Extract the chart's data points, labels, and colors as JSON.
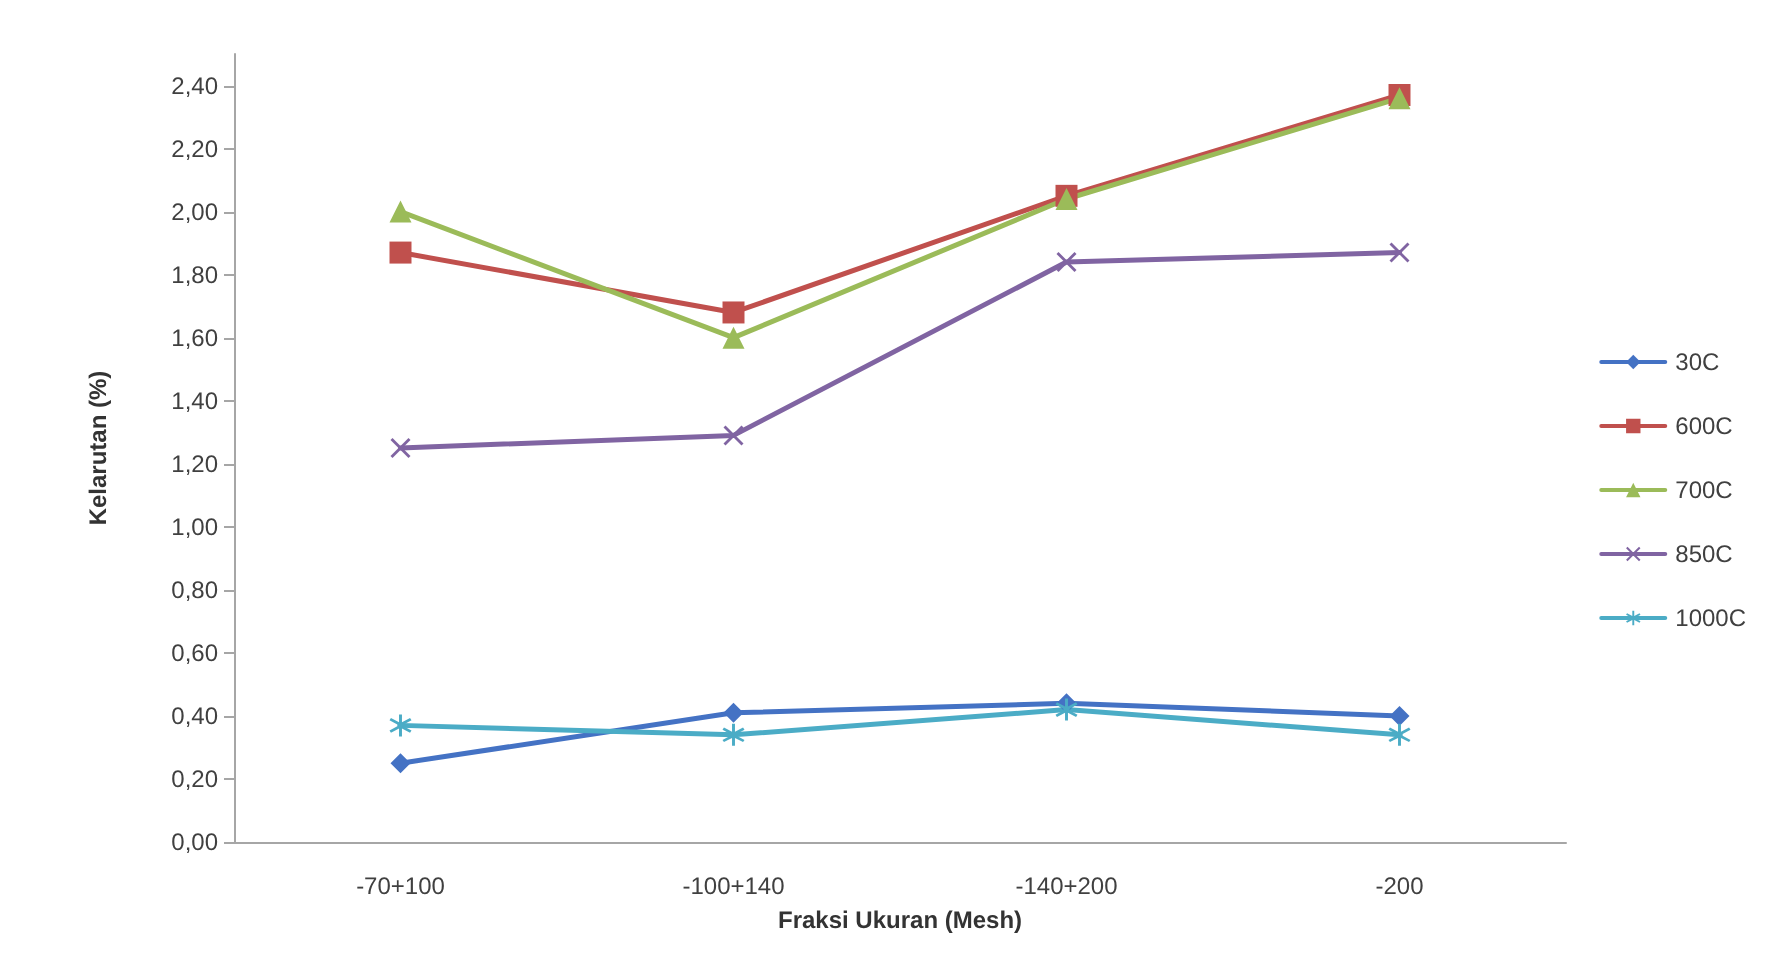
{
  "chart_data": {
    "type": "line",
    "xlabel": "Fraksi Ukuran (Mesh)",
    "ylabel": "Kelarutan (%)",
    "categories": [
      "-70+100",
      "-100+140",
      "-140+200",
      "-200"
    ],
    "series": [
      {
        "name": "30C",
        "color": "#4472c4",
        "marker": "diamond",
        "values": [
          0.25,
          0.41,
          0.44,
          0.4
        ]
      },
      {
        "name": "600C",
        "color": "#c0504d",
        "marker": "square",
        "values": [
          1.87,
          1.68,
          2.05,
          2.37
        ]
      },
      {
        "name": "700C",
        "color": "#9bbb59",
        "marker": "triangle",
        "values": [
          2.0,
          1.6,
          2.04,
          2.36
        ]
      },
      {
        "name": "850C",
        "color": "#8064a2",
        "marker": "cross",
        "values": [
          1.25,
          1.29,
          1.84,
          1.87
        ]
      },
      {
        "name": "1000C",
        "color": "#4bacc6",
        "marker": "star",
        "values": [
          0.37,
          0.34,
          0.42,
          0.34
        ]
      }
    ],
    "ylim": [
      0,
      2.5
    ],
    "yticks": [
      {
        "value": 0,
        "label": "0,00"
      },
      {
        "value": 0.2,
        "label": "0,20"
      },
      {
        "value": 0.4,
        "label": "0,40"
      },
      {
        "value": 0.6,
        "label": "0,60"
      },
      {
        "value": 0.8,
        "label": "0,80"
      },
      {
        "value": 1,
        "label": "1,00"
      },
      {
        "value": 1.2,
        "label": "1,20"
      },
      {
        "value": 1.4,
        "label": "1,40"
      },
      {
        "value": 1.6,
        "label": "1,60"
      },
      {
        "value": 1.8,
        "label": "1,80"
      },
      {
        "value": 2,
        "label": "2,00"
      },
      {
        "value": 2.2,
        "label": "2,20"
      },
      {
        "value": 2.4,
        "label": "2,40"
      }
    ],
    "grid": false,
    "legend": "right",
    "line_style": "solid"
  }
}
